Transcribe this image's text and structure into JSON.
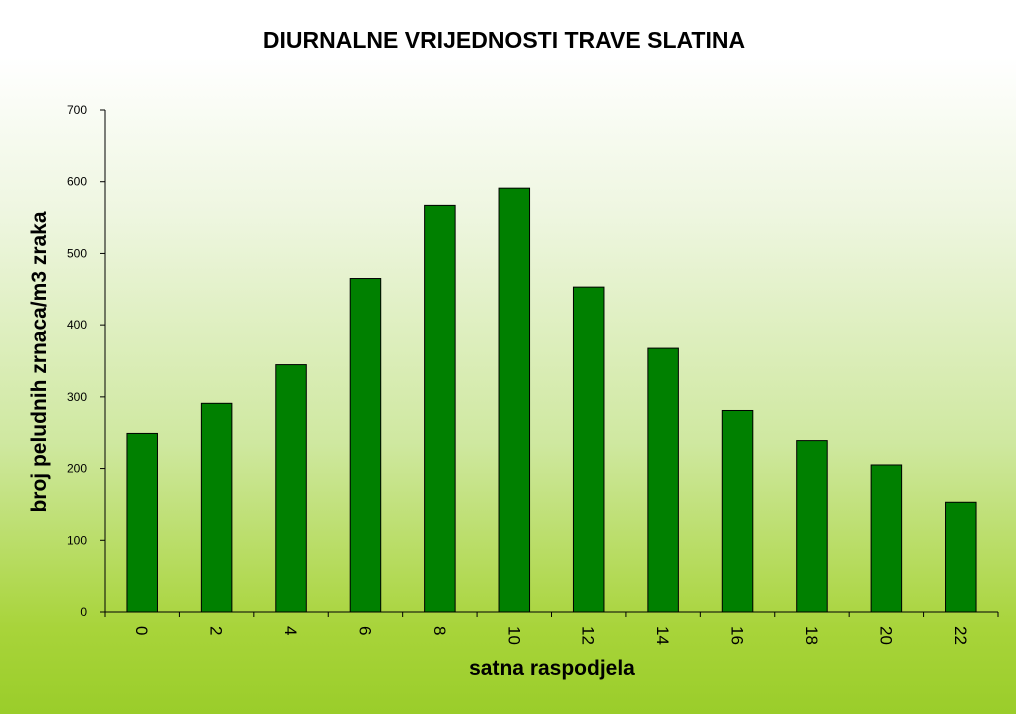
{
  "chart_data": {
    "type": "bar",
    "title": "DIURNALNE VRIJEDNOSTI TRAVE SLATINA",
    "xlabel": "satna raspodjela",
    "ylabel": "broj peludnih  zrnaca/m3 zraka",
    "categories": [
      "0",
      "2",
      "4",
      "6",
      "8",
      "10",
      "12",
      "14",
      "16",
      "18",
      "20",
      "22"
    ],
    "values": [
      249,
      291,
      345,
      465,
      567,
      591,
      453,
      368,
      281,
      239,
      205,
      153
    ],
    "ylim": [
      0,
      700
    ],
    "yticks": [
      "0",
      "100",
      "200",
      "300",
      "400",
      "500",
      "600",
      "700"
    ],
    "grid": false,
    "legend": "none",
    "colors": {
      "bar": "#008000",
      "bar_edge": "#000000"
    }
  }
}
